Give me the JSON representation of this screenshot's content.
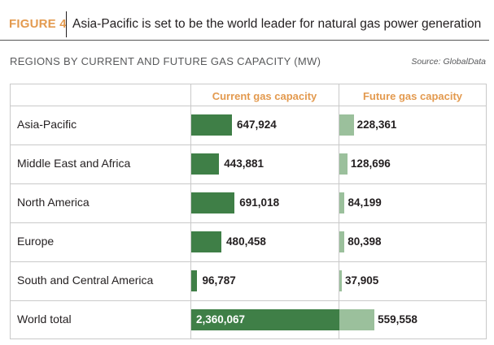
{
  "header": {
    "figure_label": "FIGURE 4",
    "title": "Asia-Pacific is set to be the world leader for natural gas power generation"
  },
  "subtitle": "REGIONS BY CURRENT AND FUTURE GAS CAPACITY (MW)",
  "source": "Source: GlobalData",
  "colors": {
    "accent": "#e39a4f",
    "current_bar": "#3f7f47",
    "future_bar": "#9bc09c"
  },
  "chart_data": {
    "type": "table",
    "columns": [
      "Current gas capacity",
      "Future gas capacity"
    ],
    "categories": [
      "Asia-Pacific",
      "Middle East and Africa",
      "North America",
      "Europe",
      "South and Central America",
      "World total"
    ],
    "series": [
      {
        "name": "Current gas capacity",
        "values": [
          647924,
          443881,
          691018,
          480458,
          96787,
          2360067
        ]
      },
      {
        "name": "Future gas capacity",
        "values": [
          228361,
          128696,
          84199,
          80398,
          37905,
          559558
        ]
      }
    ],
    "value_labels": {
      "current": [
        "647,924",
        "443,881",
        "691,018",
        "480,458",
        "96,787",
        "2,360,067"
      ],
      "future": [
        "228,361",
        "128,696",
        "84,199",
        "80,398",
        "37,905",
        "559,558"
      ]
    }
  }
}
